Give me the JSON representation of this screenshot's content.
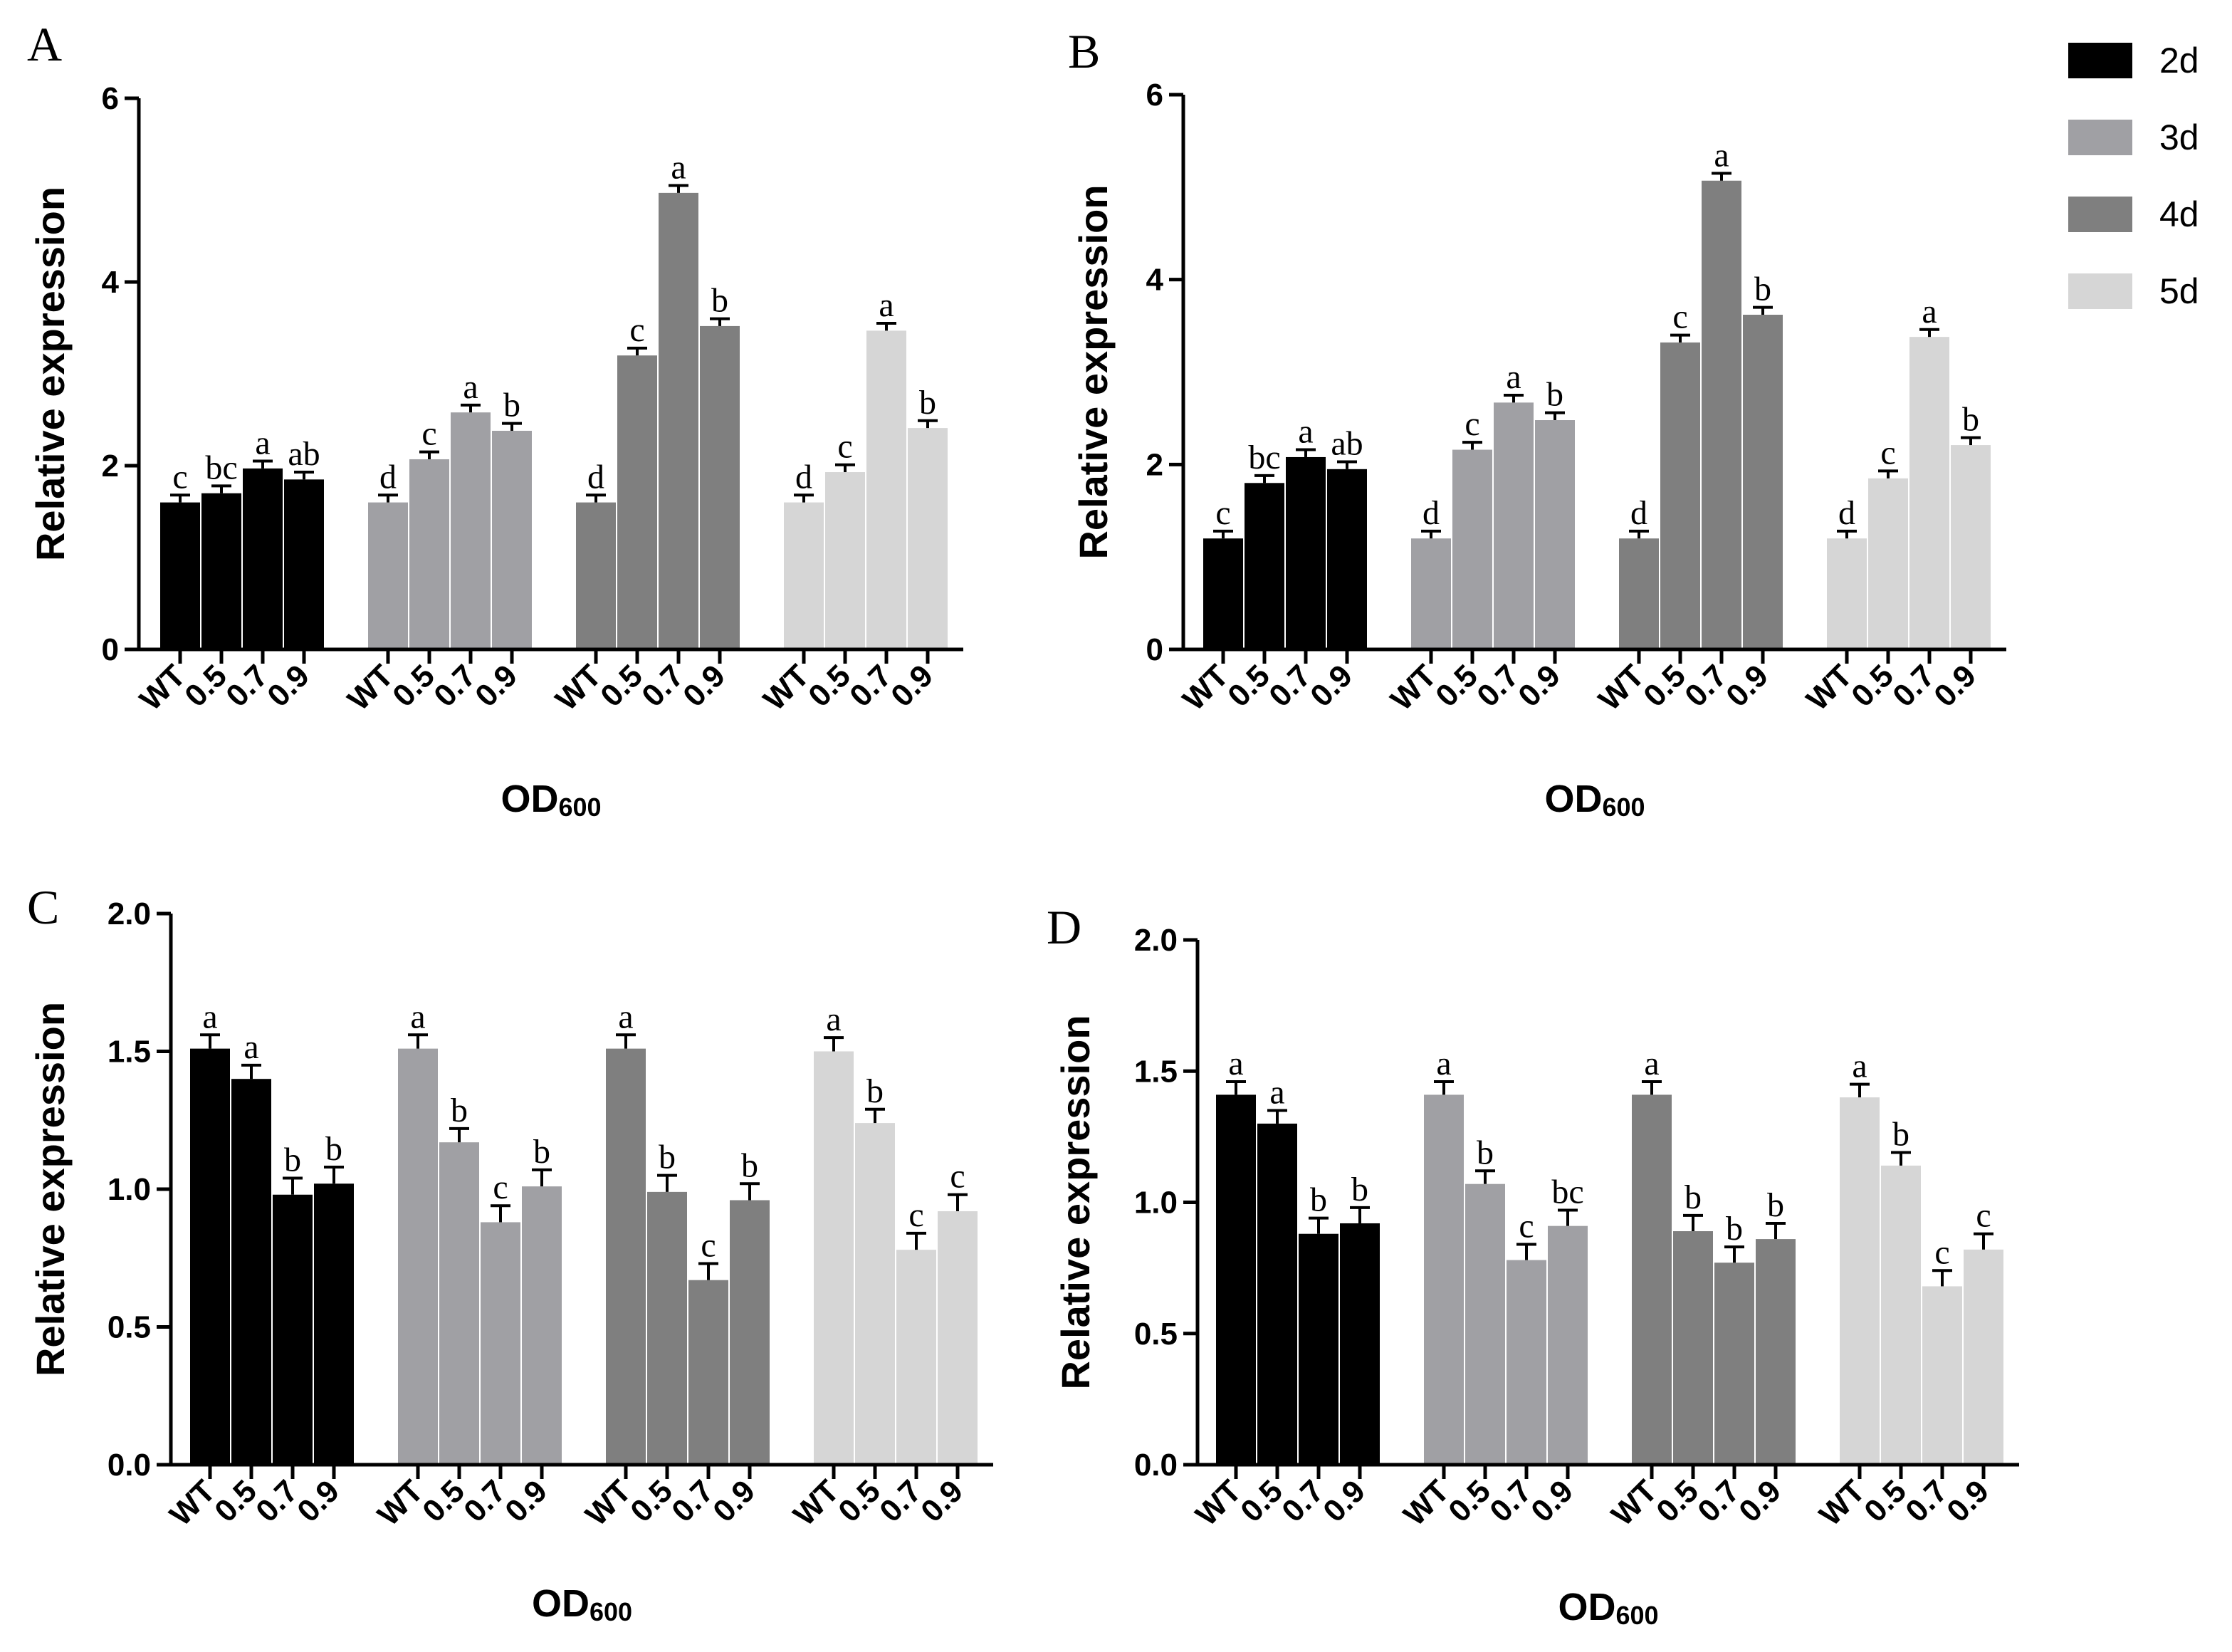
{
  "legend": {
    "items": [
      {
        "label": "2d",
        "color": "#000000"
      },
      {
        "label": "3d",
        "color": "#a0a0a4"
      },
      {
        "label": "4d",
        "color": "#7f7f7f"
      },
      {
        "label": "5d",
        "color": "#d6d6d6"
      }
    ]
  },
  "chart_data": [
    {
      "panel": "A",
      "type": "bar",
      "ylabel": "Relative expression",
      "xlabel_main": "OD",
      "xlabel_sub": "600",
      "ylim": [
        0,
        6
      ],
      "yticks": [
        "0",
        "2",
        "4",
        "6"
      ],
      "categories": [
        "WT",
        "0.5",
        "0.7",
        "0.9"
      ],
      "groups": [
        {
          "name": "2d",
          "values": [
            1.6,
            1.7,
            1.97,
            1.85
          ],
          "errors": [
            0.08,
            0.08,
            0.08,
            0.08
          ],
          "letters": [
            "c",
            "bc",
            "a",
            "ab"
          ]
        },
        {
          "name": "3d",
          "values": [
            1.6,
            2.07,
            2.58,
            2.38
          ],
          "errors": [
            0.08,
            0.08,
            0.08,
            0.08
          ],
          "letters": [
            "d",
            "c",
            "a",
            "b"
          ]
        },
        {
          "name": "4d",
          "values": [
            1.6,
            3.2,
            4.97,
            3.52
          ],
          "errors": [
            0.08,
            0.08,
            0.08,
            0.08
          ],
          "letters": [
            "d",
            "c",
            "a",
            "b"
          ]
        },
        {
          "name": "5d",
          "values": [
            1.6,
            1.93,
            3.47,
            2.41
          ],
          "errors": [
            0.08,
            0.08,
            0.08,
            0.08
          ],
          "letters": [
            "d",
            "c",
            "a",
            "b"
          ]
        }
      ]
    },
    {
      "panel": "B",
      "type": "bar",
      "ylabel": "Relative expression",
      "xlabel_main": "OD",
      "xlabel_sub": "600",
      "ylim": [
        0,
        6
      ],
      "yticks": [
        "0",
        "2",
        "4",
        "6"
      ],
      "categories": [
        "WT",
        "0.5",
        "0.7",
        "0.9"
      ],
      "groups": [
        {
          "name": "2d",
          "values": [
            1.2,
            1.8,
            2.08,
            1.95
          ],
          "errors": [
            0.08,
            0.08,
            0.08,
            0.08
          ],
          "letters": [
            "c",
            "bc",
            "a",
            "ab"
          ]
        },
        {
          "name": "3d",
          "values": [
            1.2,
            2.16,
            2.67,
            2.48
          ],
          "errors": [
            0.08,
            0.08,
            0.08,
            0.08
          ],
          "letters": [
            "d",
            "c",
            "a",
            "b"
          ]
        },
        {
          "name": "4d",
          "values": [
            1.2,
            3.32,
            5.07,
            3.62
          ],
          "errors": [
            0.08,
            0.08,
            0.08,
            0.08
          ],
          "letters": [
            "d",
            "c",
            "a",
            "b"
          ]
        },
        {
          "name": "5d",
          "values": [
            1.2,
            1.85,
            3.38,
            2.21
          ],
          "errors": [
            0.08,
            0.08,
            0.08,
            0.08
          ],
          "letters": [
            "d",
            "c",
            "a",
            "b"
          ]
        }
      ]
    },
    {
      "panel": "C",
      "type": "bar",
      "ylabel": "Relative expression",
      "xlabel_main": "OD",
      "xlabel_sub": "600",
      "ylim": [
        0,
        2
      ],
      "yticks": [
        "0.0",
        "0.5",
        "1.0",
        "1.5",
        "2.0"
      ],
      "categories": [
        "WT",
        "0.5",
        "0.7",
        "0.9"
      ],
      "groups": [
        {
          "name": "2d",
          "values": [
            1.51,
            1.4,
            0.98,
            1.02
          ],
          "errors": [
            0.05,
            0.05,
            0.06,
            0.06
          ],
          "letters": [
            "a",
            "a",
            "b",
            "b"
          ]
        },
        {
          "name": "3d",
          "values": [
            1.51,
            1.17,
            0.88,
            1.01
          ],
          "errors": [
            0.05,
            0.05,
            0.06,
            0.06
          ],
          "letters": [
            "a",
            "b",
            "c",
            "b"
          ]
        },
        {
          "name": "4d",
          "values": [
            1.51,
            0.99,
            0.67,
            0.96
          ],
          "errors": [
            0.05,
            0.06,
            0.06,
            0.06
          ],
          "letters": [
            "a",
            "b",
            "c",
            "b"
          ]
        },
        {
          "name": "5d",
          "values": [
            1.5,
            1.24,
            0.78,
            0.92
          ],
          "errors": [
            0.05,
            0.05,
            0.06,
            0.06
          ],
          "letters": [
            "a",
            "b",
            "c",
            "c"
          ]
        }
      ]
    },
    {
      "panel": "D",
      "type": "bar",
      "ylabel": "Relative expression",
      "xlabel_main": "OD",
      "xlabel_sub": "600",
      "ylim": [
        0,
        2
      ],
      "yticks": [
        "0.0",
        "0.5",
        "1.0",
        "1.5",
        "2.0"
      ],
      "categories": [
        "WT",
        "0.5",
        "0.7",
        "0.9"
      ],
      "groups": [
        {
          "name": "2d",
          "values": [
            1.41,
            1.3,
            0.88,
            0.92
          ],
          "errors": [
            0.05,
            0.05,
            0.06,
            0.06
          ],
          "letters": [
            "a",
            "a",
            "b",
            "b"
          ]
        },
        {
          "name": "3d",
          "values": [
            1.41,
            1.07,
            0.78,
            0.91
          ],
          "errors": [
            0.05,
            0.05,
            0.06,
            0.06
          ],
          "letters": [
            "a",
            "b",
            "c",
            "bc"
          ]
        },
        {
          "name": "4d",
          "values": [
            1.41,
            0.89,
            0.77,
            0.86
          ],
          "errors": [
            0.05,
            0.06,
            0.06,
            0.06
          ],
          "letters": [
            "a",
            "b",
            "b",
            "b"
          ]
        },
        {
          "name": "5d",
          "values": [
            1.4,
            1.14,
            0.68,
            0.82
          ],
          "errors": [
            0.05,
            0.05,
            0.06,
            0.06
          ],
          "letters": [
            "a",
            "b",
            "c",
            "c"
          ]
        }
      ]
    }
  ]
}
